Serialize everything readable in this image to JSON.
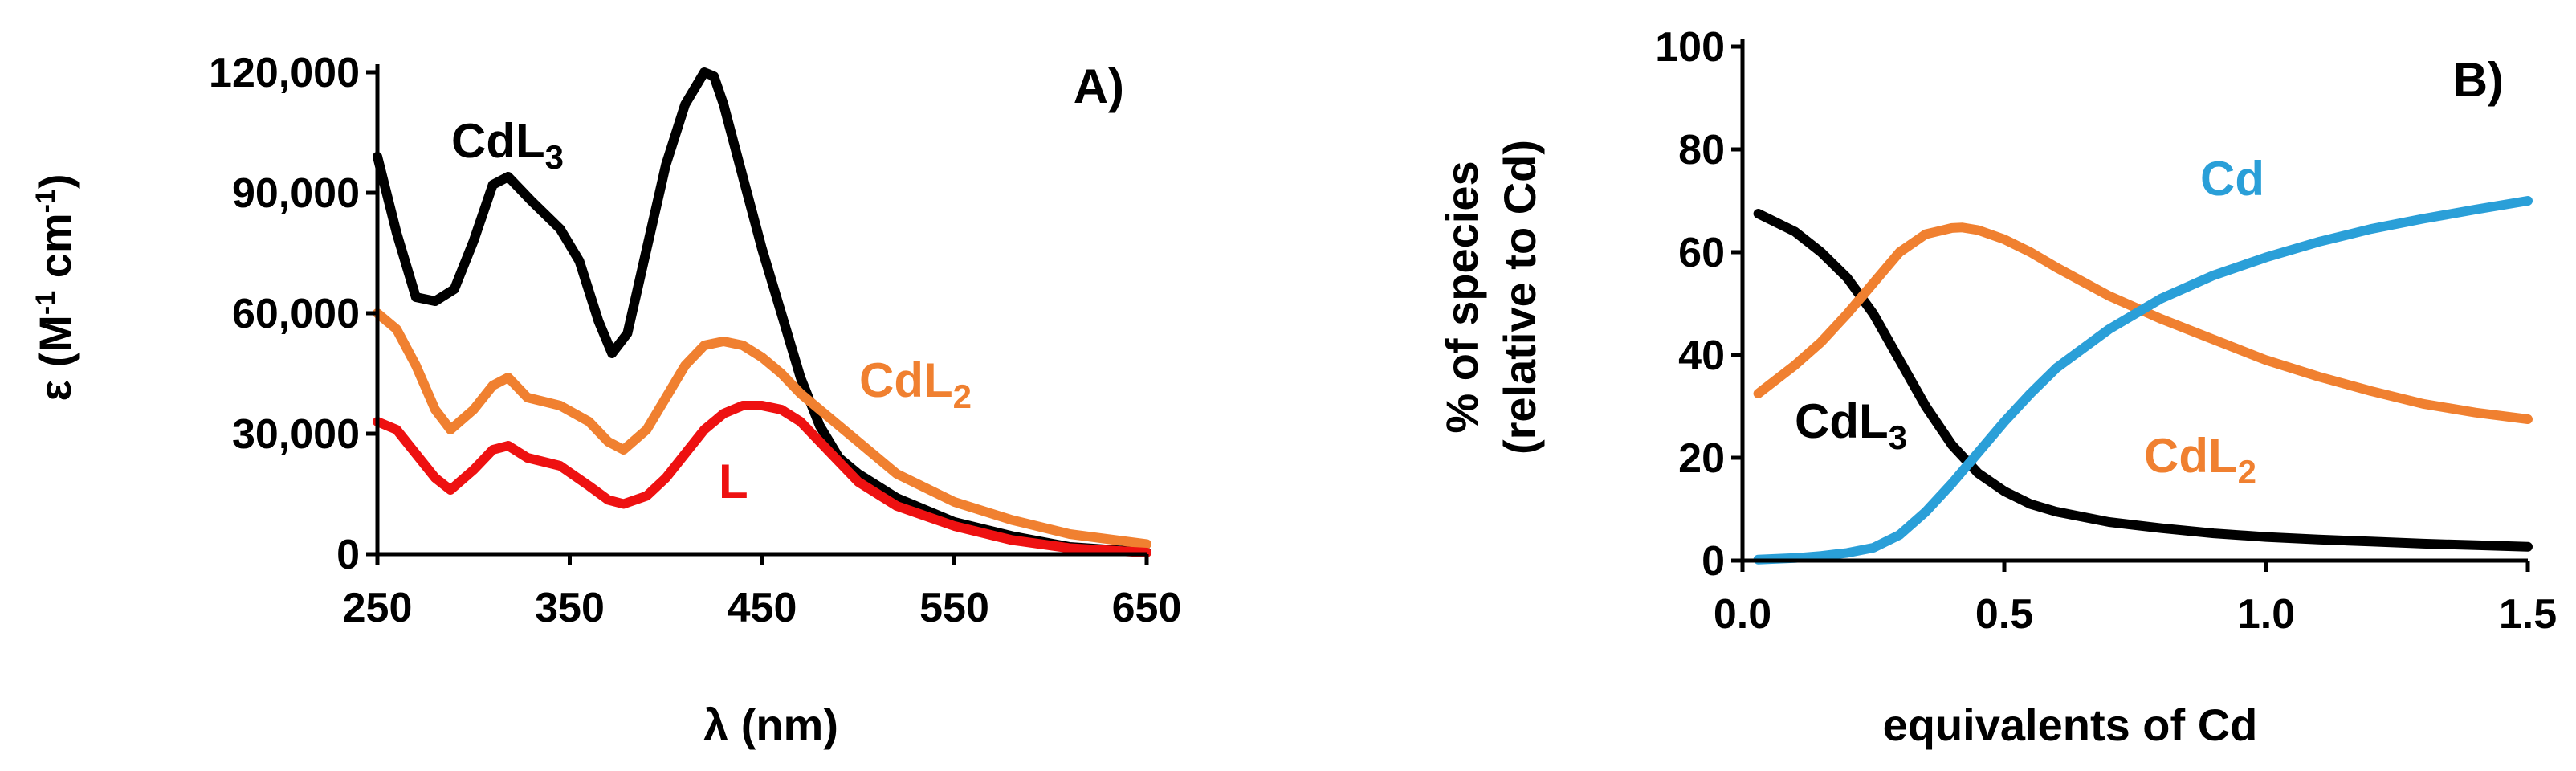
{
  "chart_data": [
    {
      "type": "line",
      "panel_label": "A)",
      "xlabel": "λ (nm)",
      "ylabel_main": "ε (M",
      "ylabel_sup1": "-1",
      "ylabel_mid": " cm",
      "ylabel_sup2": "-1",
      "ylabel_end": ")",
      "xlim": [
        250,
        650
      ],
      "ylim": [
        0,
        120000
      ],
      "xticks": [
        250,
        350,
        450,
        550,
        650
      ],
      "xtick_labels": [
        "250",
        "350",
        "450",
        "550",
        "650"
      ],
      "yticks": [
        0,
        30000,
        60000,
        90000,
        120000
      ],
      "ytick_labels": [
        "0",
        "30,000",
        "60,000",
        "90,000",
        "120,000"
      ],
      "series": [
        {
          "name": "CdL3",
          "label_base": "CdL",
          "label_sub": "3",
          "color": "#000000",
          "x": [
            250,
            260,
            270,
            280,
            290,
            300,
            310,
            318,
            330,
            345,
            355,
            365,
            372,
            380,
            390,
            400,
            410,
            420,
            425,
            430,
            440,
            450,
            460,
            470,
            480,
            490,
            500,
            520,
            550,
            580,
            610,
            650
          ],
          "y": [
            99000,
            80000,
            64000,
            63000,
            66000,
            78000,
            92000,
            94000,
            88000,
            81000,
            73000,
            58000,
            50000,
            55000,
            76000,
            97000,
            112000,
            120000,
            119000,
            112000,
            94000,
            76000,
            60000,
            44000,
            32000,
            24000,
            20000,
            14000,
            8000,
            4500,
            1800,
            500
          ]
        },
        {
          "name": "CdL2",
          "label_base": "CdL",
          "label_sub": "2",
          "color": "#F08030",
          "x": [
            250,
            260,
            270,
            280,
            288,
            300,
            310,
            318,
            328,
            345,
            360,
            370,
            378,
            390,
            400,
            410,
            420,
            430,
            440,
            450,
            460,
            470,
            480,
            500,
            520,
            550,
            580,
            610,
            650
          ],
          "y": [
            60000,
            56000,
            47000,
            36000,
            31000,
            36000,
            42000,
            44000,
            39000,
            37000,
            33000,
            28000,
            26000,
            31000,
            39000,
            47000,
            52000,
            53000,
            52000,
            49000,
            45000,
            40000,
            36000,
            28000,
            20000,
            13000,
            8500,
            5000,
            2500
          ]
        },
        {
          "name": "L",
          "label_base": "L",
          "label_sub": "",
          "color": "#EE1111",
          "x": [
            250,
            260,
            270,
            280,
            288,
            300,
            310,
            318,
            328,
            345,
            360,
            370,
            378,
            390,
            400,
            410,
            420,
            430,
            440,
            450,
            460,
            470,
            480,
            500,
            520,
            550,
            580,
            610,
            650
          ],
          "y": [
            33000,
            31000,
            25000,
            19000,
            16000,
            21000,
            26000,
            27000,
            24000,
            22000,
            17000,
            13500,
            12500,
            14500,
            19000,
            25000,
            31000,
            35000,
            37000,
            37000,
            36000,
            33000,
            28000,
            18000,
            12000,
            7000,
            3500,
            1500,
            400
          ]
        }
      ]
    },
    {
      "type": "line",
      "panel_label": "B)",
      "xlabel": "equivalents of Cd",
      "ylabel_line1": "% of species",
      "ylabel_line2": "(relative to Cd)",
      "xlim": [
        0,
        1.5
      ],
      "ylim": [
        0,
        100
      ],
      "xticks": [
        0,
        0.5,
        1.0,
        1.5
      ],
      "xtick_labels": [
        "0.0",
        "0.5",
        "1.0",
        "1.5"
      ],
      "yticks": [
        0,
        20,
        40,
        60,
        80,
        100
      ],
      "ytick_labels": [
        "0",
        "20",
        "40",
        "60",
        "80",
        "100"
      ],
      "series": [
        {
          "name": "CdL3",
          "label_base": "CdL",
          "label_sub": "3",
          "color": "#000000",
          "x": [
            0.03,
            0.1,
            0.15,
            0.2,
            0.25,
            0.3,
            0.35,
            0.4,
            0.45,
            0.5,
            0.55,
            0.6,
            0.7,
            0.8,
            0.9,
            1.0,
            1.1,
            1.2,
            1.3,
            1.4,
            1.5
          ],
          "y": [
            67.5,
            64,
            60,
            55,
            48,
            39,
            30,
            22.5,
            17,
            13.5,
            11,
            9.5,
            7.5,
            6.3,
            5.3,
            4.6,
            4.1,
            3.7,
            3.3,
            3.0,
            2.7
          ]
        },
        {
          "name": "CdL2",
          "label_base": "CdL",
          "label_sub": "2",
          "color": "#F08030",
          "x": [
            0.03,
            0.1,
            0.15,
            0.2,
            0.25,
            0.3,
            0.35,
            0.4,
            0.42,
            0.45,
            0.5,
            0.55,
            0.6,
            0.7,
            0.8,
            0.9,
            1.0,
            1.1,
            1.2,
            1.3,
            1.4,
            1.5
          ],
          "y": [
            32.5,
            38,
            42.5,
            48,
            54,
            60,
            63.5,
            64.7,
            64.8,
            64.3,
            62.5,
            60,
            57,
            51.5,
            47,
            43,
            39,
            35.8,
            33,
            30.5,
            28.8,
            27.5
          ]
        },
        {
          "name": "Cd",
          "label_base": "Cd",
          "label_sub": "",
          "color": "#2A9FD8",
          "x": [
            0.03,
            0.1,
            0.15,
            0.2,
            0.25,
            0.3,
            0.35,
            0.4,
            0.45,
            0.5,
            0.55,
            0.6,
            0.7,
            0.8,
            0.9,
            1.0,
            1.1,
            1.2,
            1.3,
            1.4,
            1.5
          ],
          "y": [
            0.2,
            0.5,
            0.9,
            1.5,
            2.5,
            5,
            9.5,
            15,
            21,
            27,
            32.5,
            37.5,
            45,
            51,
            55.5,
            59,
            62,
            64.5,
            66.5,
            68.3,
            70
          ]
        }
      ]
    }
  ]
}
